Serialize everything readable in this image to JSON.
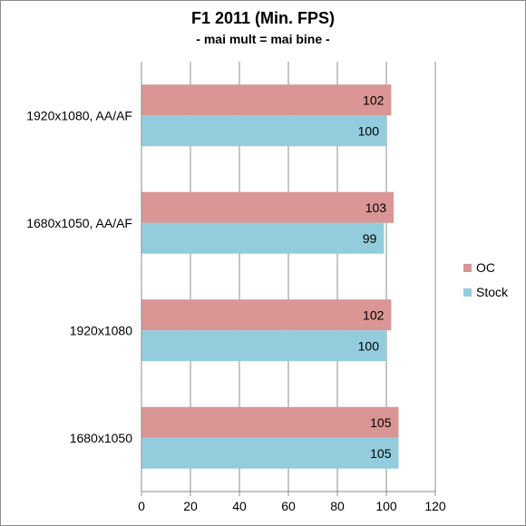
{
  "chart_data": {
    "type": "bar",
    "orientation": "horizontal",
    "title": "F1 2011 (Min. FPS)",
    "subtitle": "- mai mult = mai bine -",
    "categories": [
      "1920x1080, AA/AF",
      "1680x1050, AA/AF",
      "1920x1080",
      "1680x1050"
    ],
    "series": [
      {
        "name": "OC",
        "color": "#d99694",
        "values": [
          102,
          103,
          102,
          105
        ]
      },
      {
        "name": "Stock",
        "color": "#93cddd",
        "values": [
          100,
          99,
          100,
          105
        ]
      }
    ],
    "xlim": [
      0,
      120
    ],
    "xticks": [
      0,
      20,
      40,
      60,
      80,
      100,
      120
    ],
    "grid": true,
    "legend": "right"
  }
}
